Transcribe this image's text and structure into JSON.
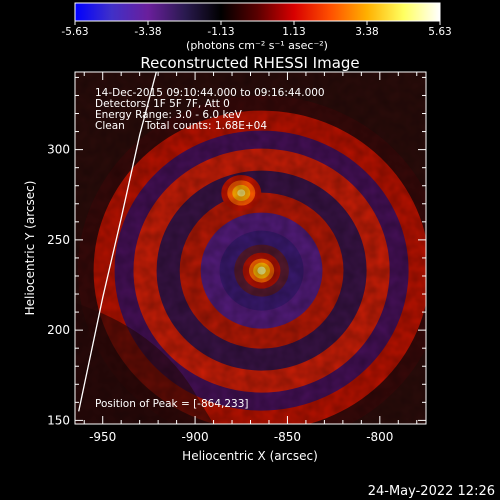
{
  "chart_data": {
    "type": "heatmap",
    "title": "Reconstructed RHESSI Image",
    "xlabel": "Heliocentric X (arcsec)",
    "ylabel": "Heliocentric Y (arcsec)",
    "xlim": [
      -965,
      -775
    ],
    "ylim": [
      148,
      343
    ],
    "x_ticks": [
      -950,
      -900,
      -850,
      -800
    ],
    "y_ticks": [
      150,
      200,
      250,
      300
    ],
    "colorbar": {
      "label": "(photons cm⁻² s⁻¹ asec⁻²)",
      "range": [
        -5.63,
        5.63
      ],
      "tick_labels": [
        "-5.63",
        "-3.38",
        "-1.13",
        "1.13",
        "3.38",
        "5.63"
      ],
      "colormap": [
        "#0000ff",
        "#4030c8",
        "#6a1f9c",
        "#2a1a50",
        "#000000",
        "#5a0000",
        "#d80000",
        "#ff5000",
        "#ffb000",
        "#ffff60",
        "#ffffff"
      ]
    },
    "annotations": [
      "14-Dec-2015 09:10:44.000 to 09:16:44.000",
      "Detectors: 1F 5F 7F, Att 0",
      "Energy Range: 3.0 - 6.0 keV",
      "Clean",
      "Total counts: 1.68E+04"
    ],
    "peak_label": "Position of Peak = [-864,233]",
    "peak_position": [
      -864,
      233
    ],
    "secondary_source": [
      -875,
      276
    ],
    "limb_curve": [
      [
        -963,
        155
      ],
      [
        -950,
        218
      ],
      [
        -940,
        262
      ],
      [
        -930,
        308
      ],
      [
        -921,
        343
      ]
    ]
  },
  "footer": {
    "date": "24-May-2022 12:26"
  }
}
